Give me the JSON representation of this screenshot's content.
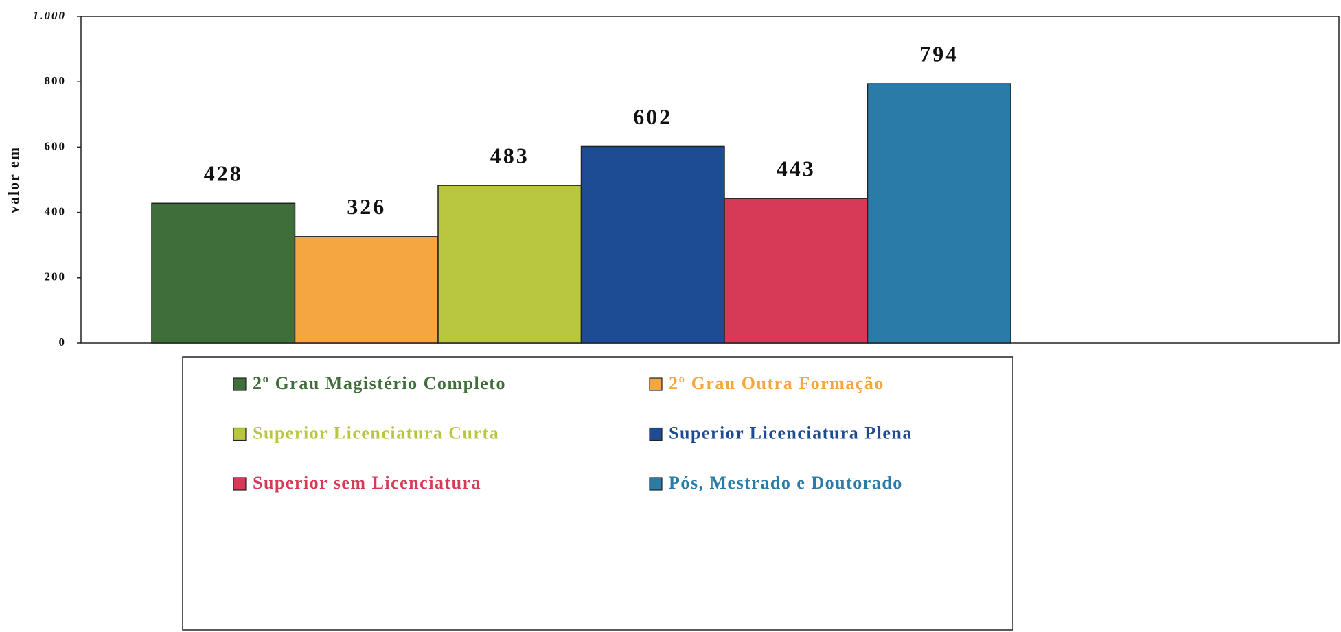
{
  "chart_data": {
    "type": "bar",
    "ylabel": "valor em",
    "series": [
      {
        "name": "2º Grau Magistério Completo",
        "color": "#3f6e3b",
        "values": [
          428
        ]
      },
      {
        "name": "2º Grau Outra Formação",
        "color": "#f5a640",
        "values": [
          326
        ]
      },
      {
        "name": "Superior Licenciatura Curta",
        "color": "#b9c740",
        "values": [
          483
        ]
      },
      {
        "name": "Superior Licenciatura Plena",
        "color": "#1d4c95",
        "values": [
          602
        ]
      },
      {
        "name": "Superior sem Licenciatura",
        "color": "#d63a56",
        "values": [
          443
        ]
      },
      {
        "name": "Pós, Mestrado e Doutorado",
        "color": "#2b7ba8",
        "values": [
          794
        ]
      }
    ],
    "ylim": [
      0,
      1000
    ],
    "yticks": [
      0,
      200,
      400,
      600,
      800,
      {
        "value": 1000,
        "label": "1.000"
      }
    ],
    "grid": false,
    "legend": "bottom"
  }
}
